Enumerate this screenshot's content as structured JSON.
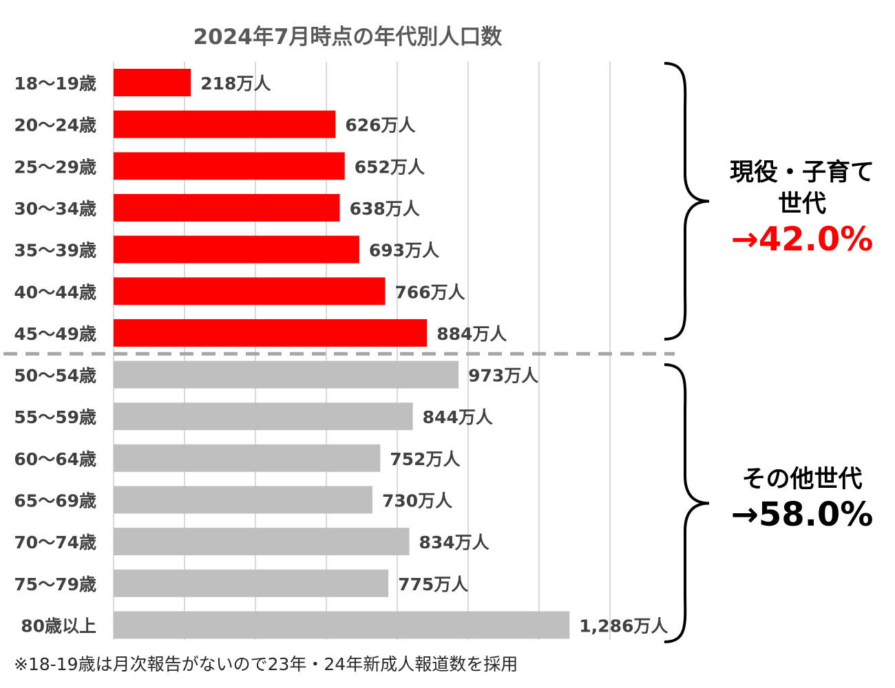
{
  "chart_data": {
    "type": "bar",
    "orientation": "horizontal",
    "title": "2024年7月時点の年代別人口数",
    "categories": [
      "18〜19歳",
      "20〜24歳",
      "25〜29歳",
      "30〜34歳",
      "35〜39歳",
      "40〜44歳",
      "45〜49歳",
      "50〜54歳",
      "55〜59歳",
      "60〜64歳",
      "65〜69歳",
      "70〜74歳",
      "75〜79歳",
      "80歳以上"
    ],
    "values": [
      218,
      626,
      652,
      638,
      693,
      766,
      884,
      973,
      844,
      752,
      730,
      834,
      775,
      1286
    ],
    "data_labels": [
      "218万人",
      "626万人",
      "652万人",
      "638万人",
      "693万人",
      "766万人",
      "884万人",
      "973万人",
      "844万人",
      "752万人",
      "730万人",
      "834万人",
      "775万人",
      "1,286万人"
    ],
    "unit": "万人",
    "xlim": [
      0,
      1400
    ],
    "grid_step": 200,
    "grid": true,
    "highlight_count": 7,
    "colors": {
      "highlight": "#ff0000",
      "other": "#bfbfbf",
      "grid": "#d9d9d9",
      "divider": "#a6a6a6",
      "text": "#404040"
    }
  },
  "groups": [
    {
      "label_line1": "現役・子育て",
      "label_line2": "世代",
      "percent": "→42.0%",
      "color": "#ff0000"
    },
    {
      "label_line1": "その他世代",
      "label_line2": "",
      "percent": "→58.0%",
      "color": "#000000"
    }
  ],
  "note": "※18-19歳は月次報告がないので23年・24年新成人報道数を採用"
}
